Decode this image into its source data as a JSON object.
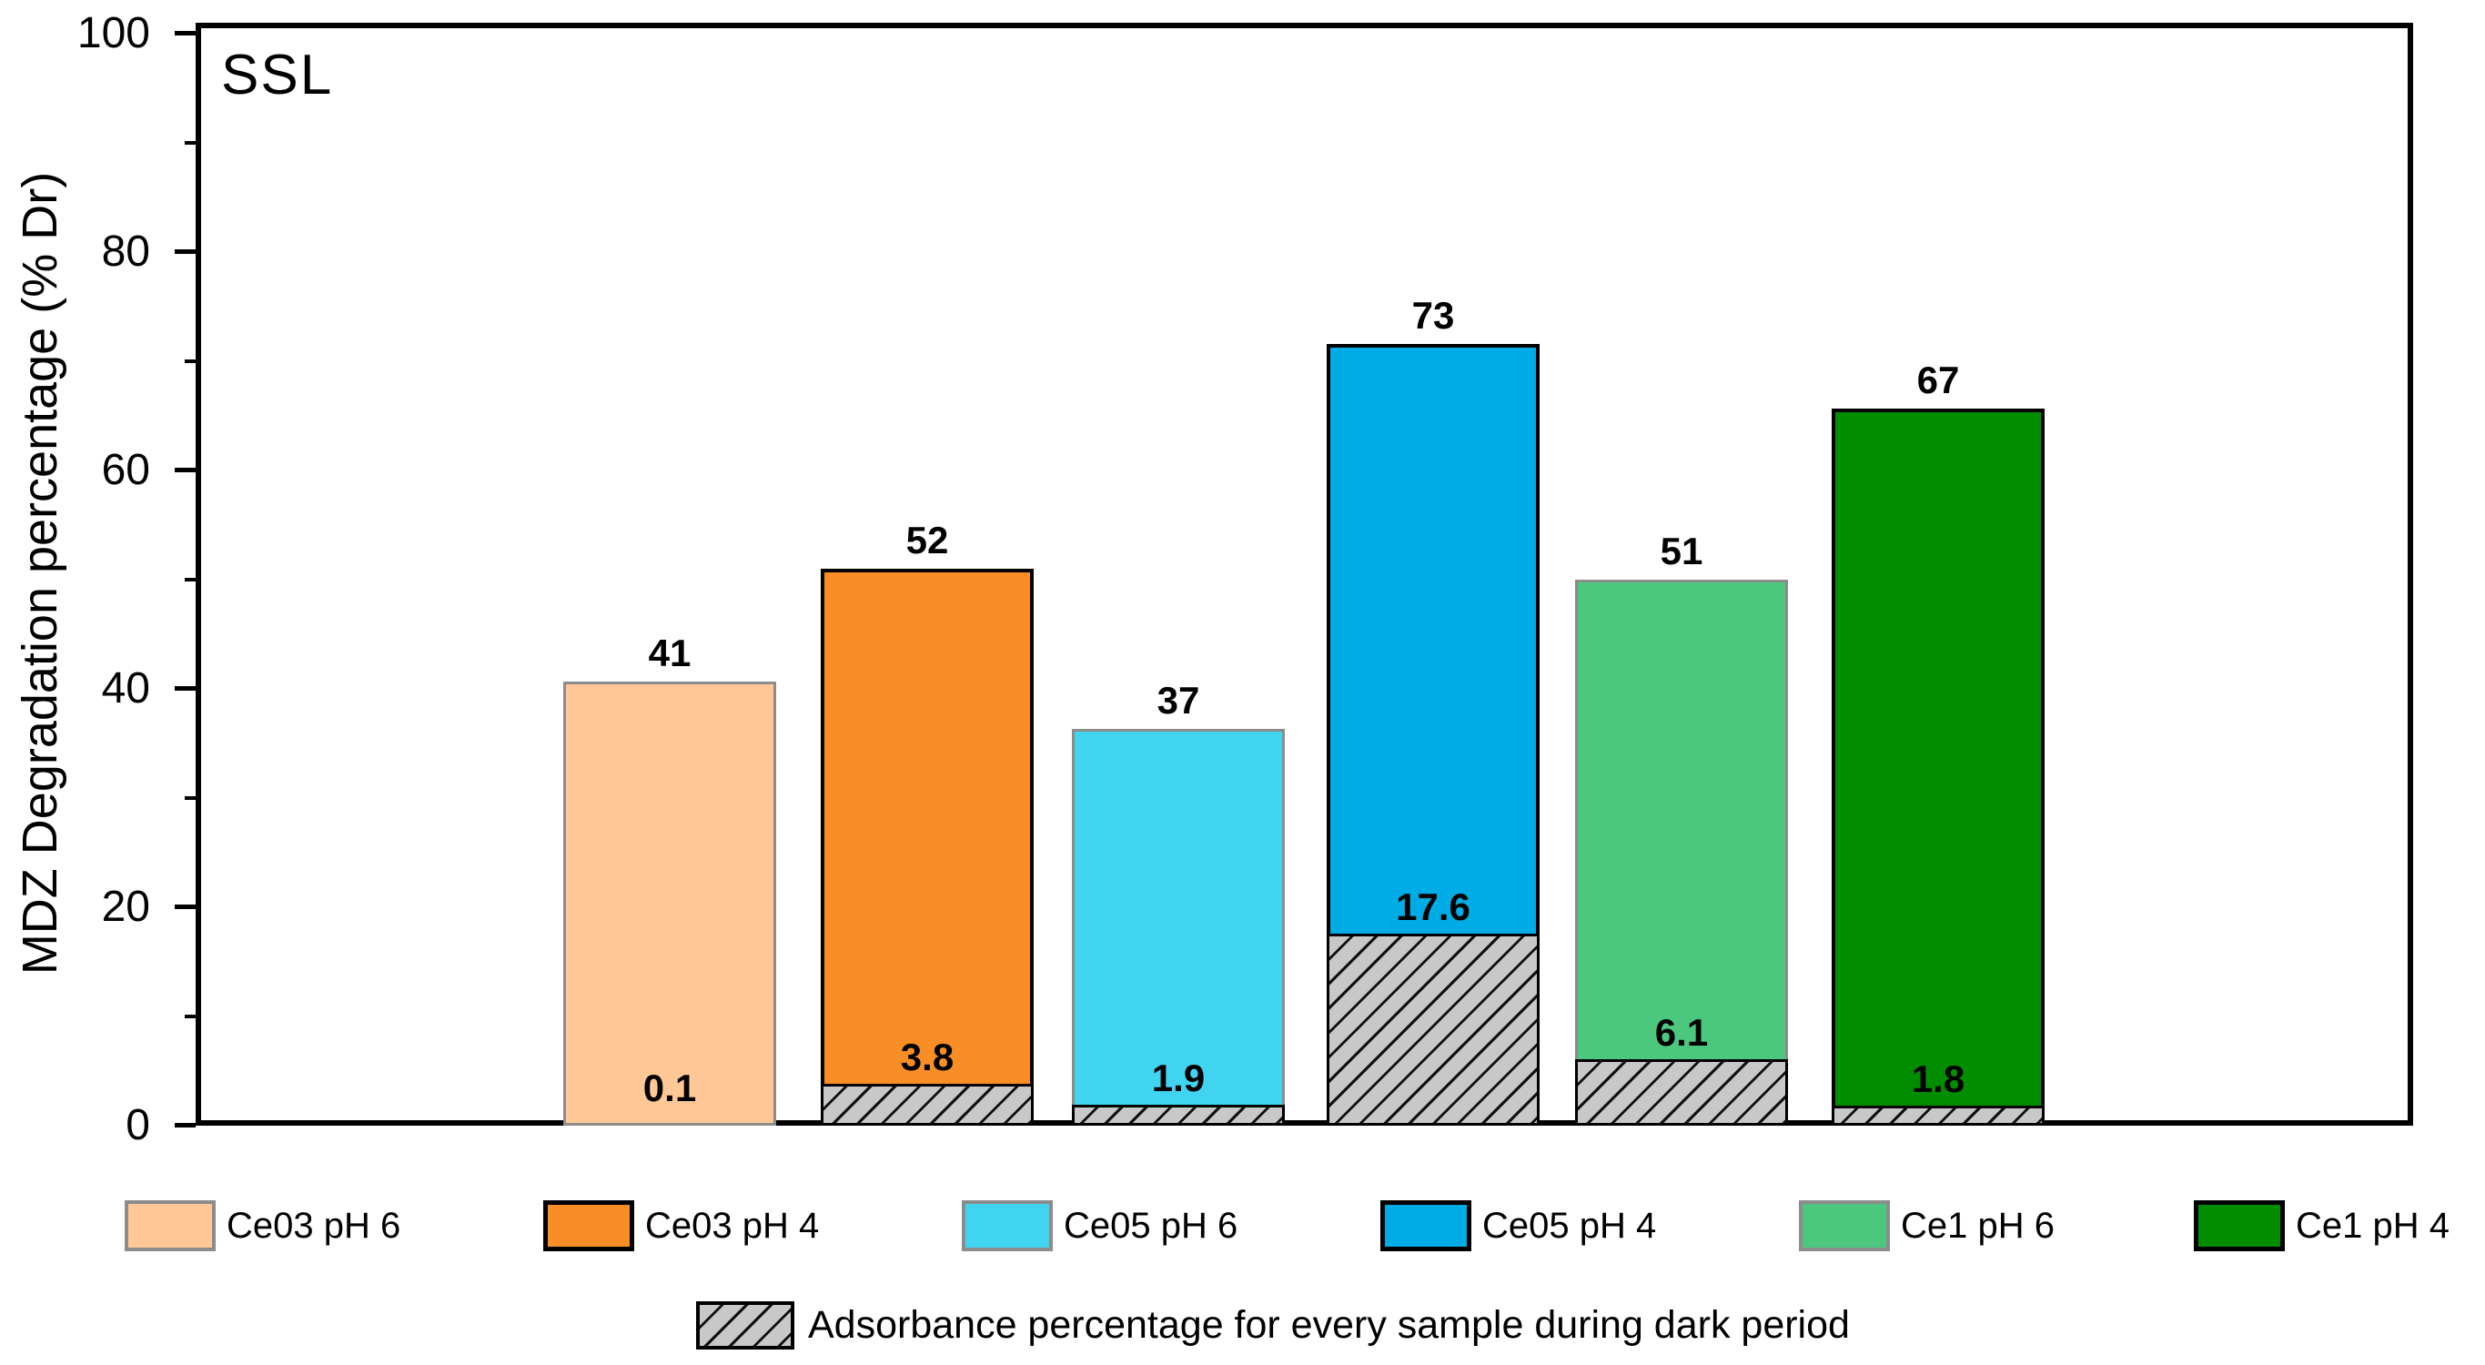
{
  "annotation": "SSL",
  "chart_data": {
    "type": "bar",
    "title": "",
    "xlabel": "",
    "ylabel": "MDZ Degradation percentage (% Dr)",
    "ylim": [
      0,
      100
    ],
    "y_major_ticks": [
      0,
      20,
      40,
      60,
      80,
      100
    ],
    "y_tick_labels": [
      "0",
      "20",
      "40",
      "60",
      "80",
      "100"
    ],
    "y_minor_step": 10,
    "grid": false,
    "legend_position": "bottom",
    "categories": [
      "Ce03 pH 6",
      "Ce03 pH 4",
      "Ce05 pH 6",
      "Ce05 pH 4",
      "Ce1 pH 6",
      "Ce1 pH 4"
    ],
    "series": [
      {
        "name": "MDZ degradation percentage (value label above bar)",
        "values": [
          41,
          52,
          37,
          73,
          51,
          67
        ]
      },
      {
        "name": "Adsorbance percentage during dark period (hatched bottom segment)",
        "values": [
          0.1,
          3.8,
          1.9,
          17.6,
          6.1,
          1.8
        ]
      }
    ],
    "bars": [
      {
        "category": "Ce03 pH 6",
        "value_label": "41",
        "adsorb_label": "0.1",
        "drawn_top": 40.7,
        "adsorb": 0.1,
        "fill": "#FFC896",
        "edge": "#8C8C8C"
      },
      {
        "category": "Ce03 pH 4",
        "value_label": "52",
        "adsorb_label": "3.8",
        "drawn_top": 51.0,
        "adsorb": 3.8,
        "fill": "#F98E26",
        "edge": "#000000"
      },
      {
        "category": "Ce05 pH 6",
        "value_label": "37",
        "adsorb_label": "1.9",
        "drawn_top": 36.3,
        "adsorb": 1.9,
        "fill": "#40D4F0",
        "edge": "#8C8C8C"
      },
      {
        "category": "Ce05 pH 4",
        "value_label": "73",
        "adsorb_label": "17.6",
        "drawn_top": 71.6,
        "adsorb": 17.6,
        "fill": "#00ACE6",
        "edge": "#000000"
      },
      {
        "category": "Ce1 pH 6",
        "value_label": "51",
        "adsorb_label": "6.1",
        "drawn_top": 50.0,
        "adsorb": 6.1,
        "fill": "#4CC87E",
        "edge": "#8C8C8C"
      },
      {
        "category": "Ce1 pH 4",
        "value_label": "67",
        "adsorb_label": "1.8",
        "drawn_top": 65.7,
        "adsorb": 1.8,
        "fill": "#008E00",
        "edge": "#000000"
      }
    ],
    "hatch_colors": {
      "fill": "#C8C8C8",
      "line": "#111111"
    },
    "legend": [
      {
        "label": "Ce03 pH 6",
        "color": "#FFC896",
        "edge": "#8C8C8C"
      },
      {
        "label": "Ce03 pH 4",
        "color": "#F98E26",
        "edge": "#000000"
      },
      {
        "label": "Ce05 pH 6",
        "color": "#40D4F0",
        "edge": "#8C8C8C"
      },
      {
        "label": "Ce05 pH 4",
        "color": "#00ACE6",
        "edge": "#000000"
      },
      {
        "label": "Ce1 pH 6",
        "color": "#4CC87E",
        "edge": "#8C8C8C"
      },
      {
        "label": "Ce1 pH 4",
        "color": "#008E00",
        "edge": "#000000"
      }
    ],
    "hatch_legend": "Adsorbance percentage for every sample during dark period"
  }
}
